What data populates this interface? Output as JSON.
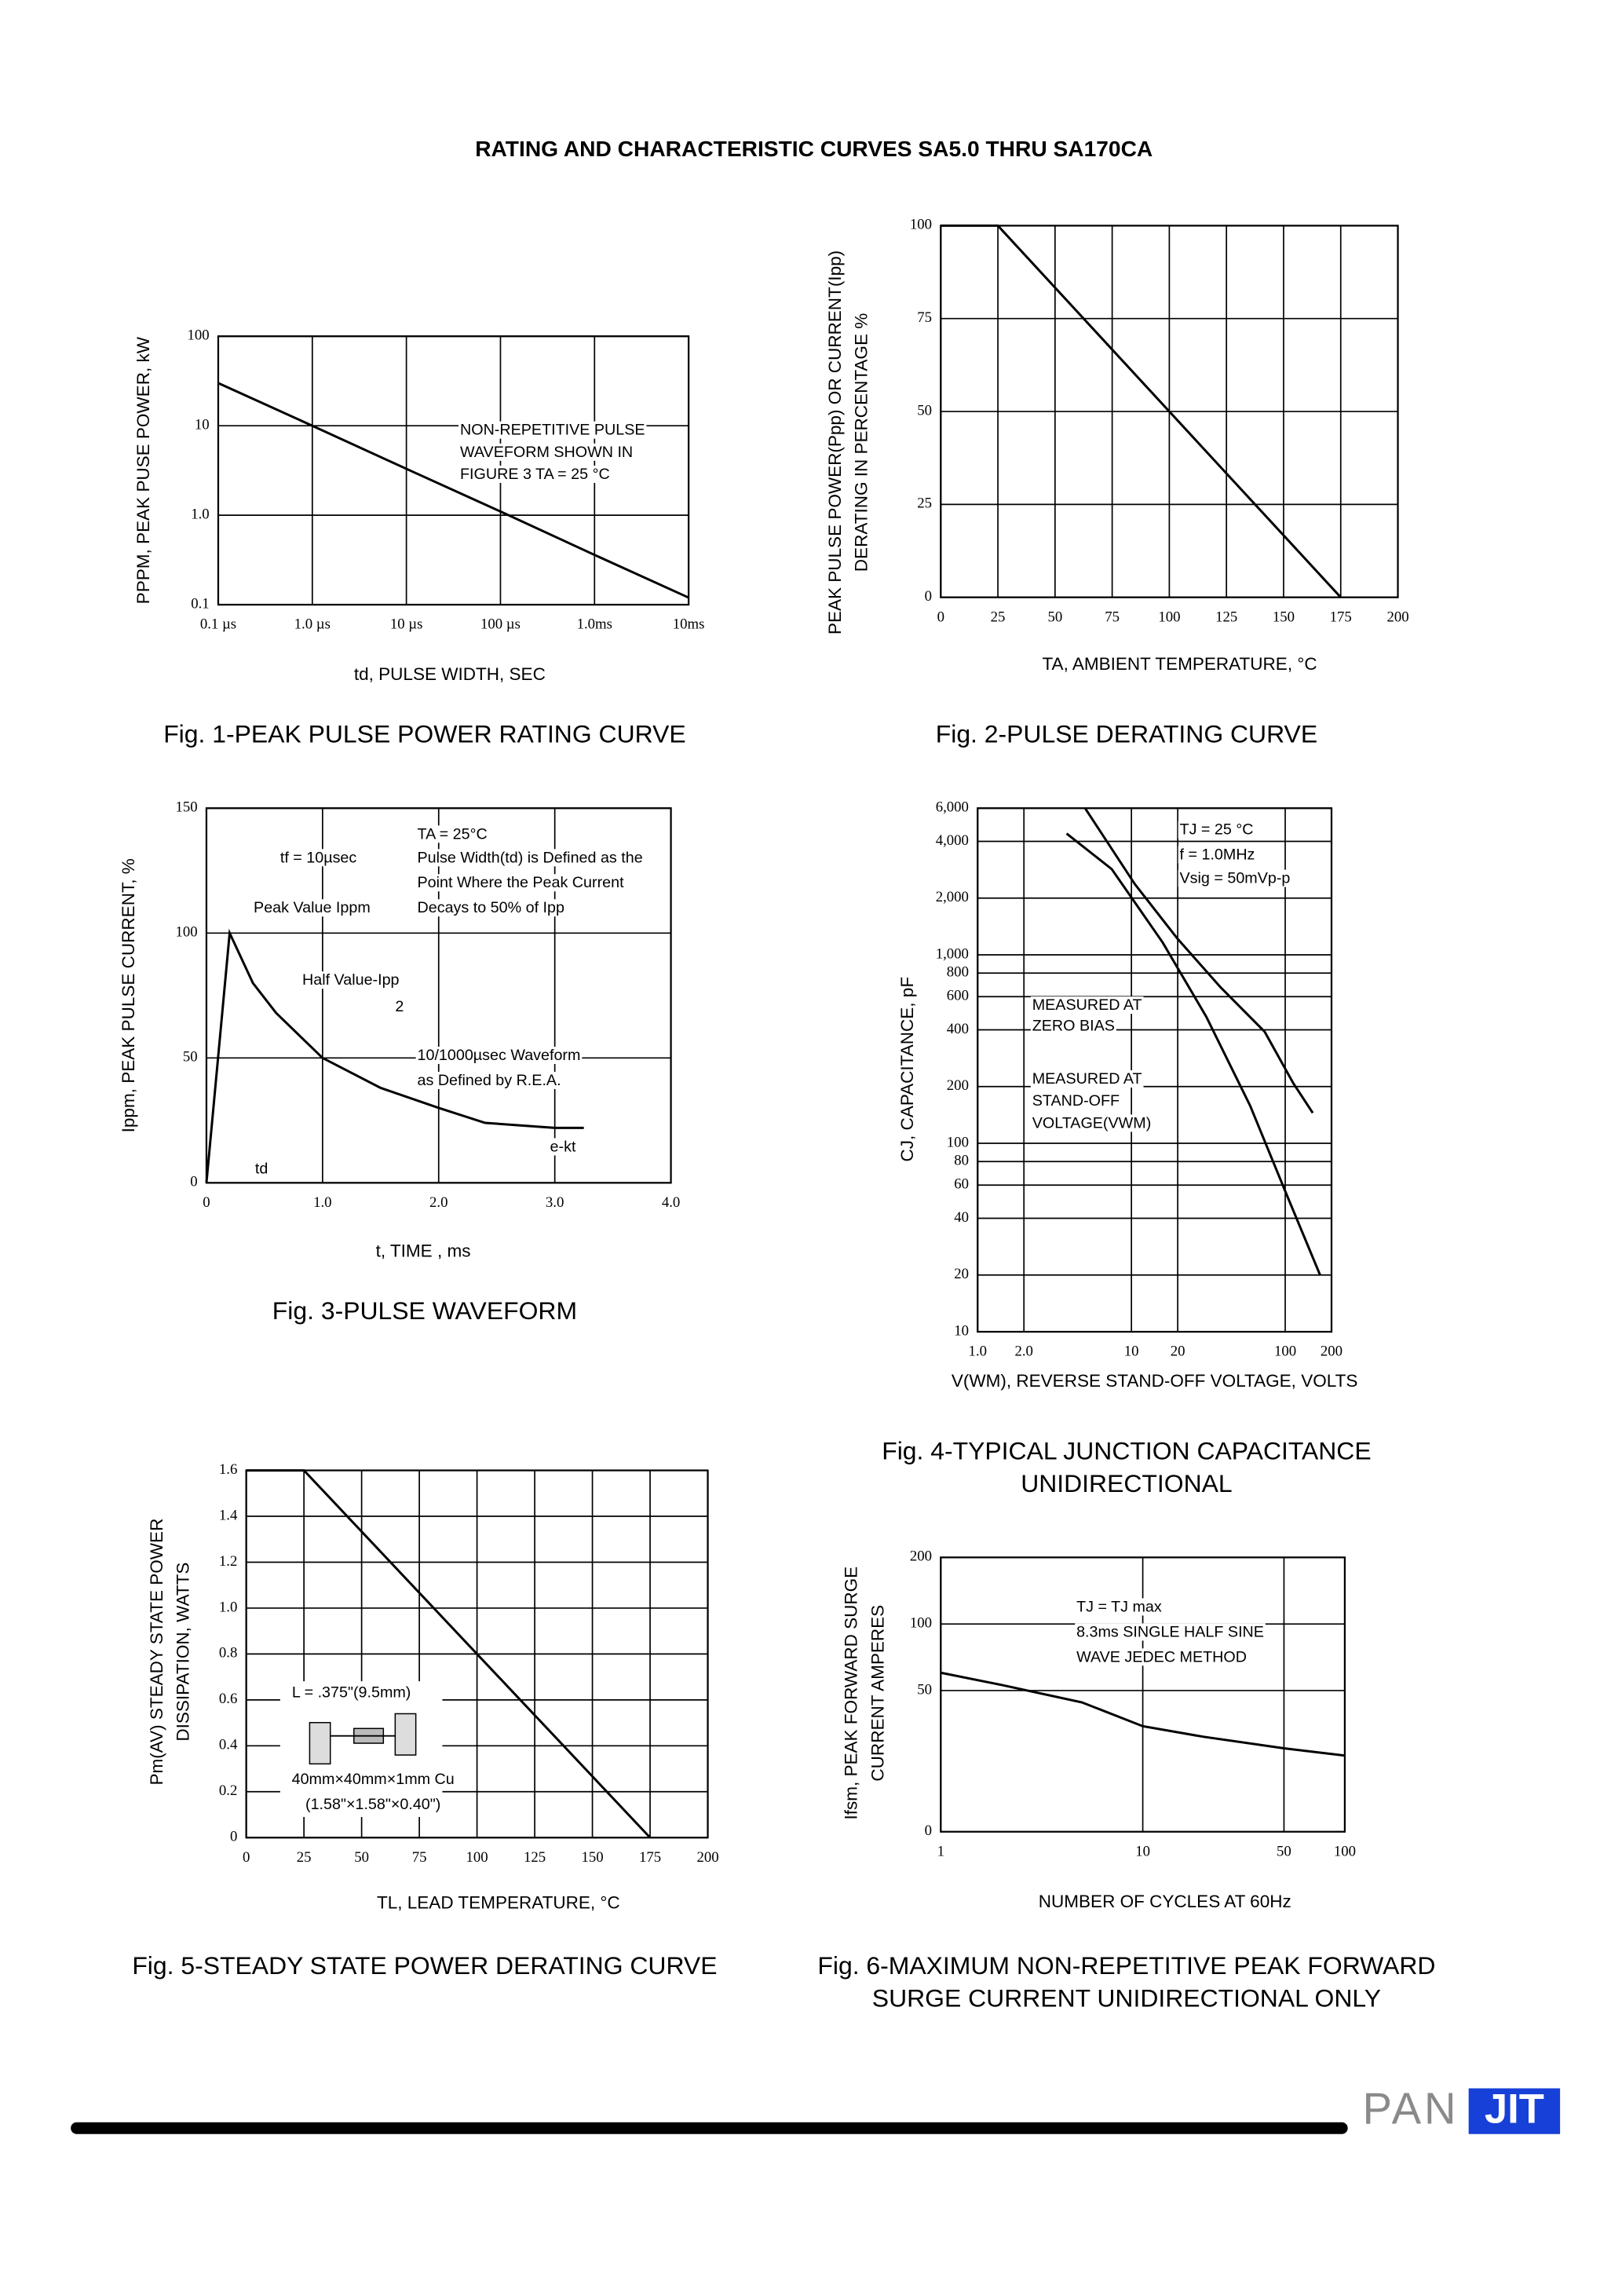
{
  "title": "RATING AND CHARACTERISTIC CURVES SA5.0 THRU SA170CA",
  "logo": {
    "left": "PAN",
    "right": "JIT"
  },
  "chart_data": [
    {
      "type": "line",
      "caption": [
        "Fig. 1-PEAK PULSE POWER RATING CURVE"
      ],
      "xlabel": "td, PULSE WIDTH, SEC",
      "ylabel": [
        "PPPM, PEAK PUSE POWER, kW"
      ],
      "xlog": true,
      "ylog": true,
      "grid": true,
      "xlim": [
        1e-07,
        0.01
      ],
      "ylim": [
        0.1,
        100
      ],
      "xticks": [
        {
          "value": 1e-07,
          "label": "0.1 µs"
        },
        {
          "value": 1e-06,
          "label": "1.0 µs"
        },
        {
          "value": 1e-05,
          "label": "10 µs"
        },
        {
          "value": 0.0001,
          "label": "100 µs"
        },
        {
          "value": 0.001,
          "label": "1.0ms"
        },
        {
          "value": 0.01,
          "label": "10ms"
        }
      ],
      "yticks": [
        0.1,
        {
          "value": 1,
          "label": "1.0"
        },
        10,
        100
      ],
      "x": [
        1e-07,
        1e-06,
        1e-05,
        0.0001,
        0.001,
        0.01
      ],
      "series": [
        {
          "color": "#000000",
          "values": [
            30,
            10,
            3.3,
            1.1,
            0.36,
            0.12
          ]
        }
      ],
      "annotations": [
        "NON-REPETITIVE PULSE",
        "WAVEFORM SHOWN IN",
        "FIGURE 3 TA = 25 °C"
      ]
    },
    {
      "type": "line",
      "caption": [
        "Fig. 2-PULSE DERATING CURVE"
      ],
      "xlabel": "TA, AMBIENT TEMPERATURE, °C",
      "ylabel": [
        "PEAK PULSE POWER(Ppp) OR CURRENT(Ipp)",
        "DERATING IN PERCENTAGE %"
      ],
      "xlog": false,
      "ylog": false,
      "grid": true,
      "xlim": [
        0,
        200
      ],
      "ylim": [
        0,
        100
      ],
      "xticks": [
        0,
        25,
        50,
        75,
        100,
        125,
        150,
        175,
        200
      ],
      "yticks": [
        0,
        25,
        50,
        75,
        100
      ],
      "x": [
        0,
        25,
        175
      ],
      "series": [
        {
          "color": "#000000",
          "values": [
            100,
            100,
            0
          ]
        }
      ],
      "annotations": []
    },
    {
      "type": "line",
      "caption": [
        "Fig. 3-PULSE WAVEFORM"
      ],
      "xlabel": "t, TIME , ms",
      "ylabel": [
        "Ippm, PEAK PULSE CURRENT, %"
      ],
      "xlog": false,
      "ylog": false,
      "grid": true,
      "xlim": [
        0,
        4
      ],
      "ylim": [
        0,
        150
      ],
      "xticks": [
        0,
        {
          "value": 1,
          "label": "1.0"
        },
        {
          "value": 2,
          "label": "2.0"
        },
        {
          "value": 3,
          "label": "3.0"
        },
        {
          "value": 4,
          "label": "4.0"
        }
      ],
      "yticks": [
        0,
        50,
        100,
        150
      ],
      "x": [
        0,
        0.2,
        0.4,
        0.6,
        1,
        1.5,
        2,
        2.4,
        3,
        3.25
      ],
      "series": [
        {
          "color": "#000000",
          "values": [
            0,
            100,
            80,
            68,
            50,
            38,
            30,
            24,
            22,
            22
          ]
        }
      ],
      "annotations": [
        "TA = 25°C",
        "tf = 10µsec",
        "Pulse Width(td) is Defined as the",
        "Point Where the Peak Current",
        "Decays to 50% of Ipp",
        "Peak Value Ippm",
        "Half Value-Ipp",
        "2",
        "10/1000µsec Waveform",
        "as Defined by R.E.A.",
        "e-kt",
        "td"
      ]
    },
    {
      "type": "line",
      "caption": [
        "Fig. 4-TYPICAL JUNCTION CAPACITANCE",
        "UNIDIRECTIONAL"
      ],
      "xlabel": "V(WM), REVERSE STAND-OFF VOLTAGE, VOLTS",
      "ylabel": [
        "CJ, CAPACITANCE, pF"
      ],
      "xlog": true,
      "ylog": true,
      "grid": true,
      "xlim": [
        1,
        200
      ],
      "ylim": [
        10,
        6000
      ],
      "xticks": [
        {
          "value": 1,
          "label": "1.0"
        },
        {
          "value": 2,
          "label": "2.0"
        },
        10,
        20,
        100,
        200
      ],
      "yticks": [
        10,
        20,
        40,
        60,
        80,
        100,
        200,
        400,
        600,
        800,
        {
          "value": 1000,
          "label": "1,000"
        },
        {
          "value": 2000,
          "label": "2,000"
        },
        {
          "value": 4000,
          "label": "4,000"
        },
        {
          "value": 6000,
          "label": "6,000"
        }
      ],
      "series": [
        {
          "color": "#000000",
          "x": [
            5,
            10.5,
            19.9,
            38.1,
            73.5,
            113,
            151
          ],
          "values": [
            6000,
            2380,
            1220,
            671,
            391,
            208,
            145
          ]
        },
        {
          "color": "#000000",
          "x": [
            3.79,
            7.45,
            16,
            30.7,
            59.2,
            102,
            169
          ],
          "values": [
            4400,
            2850,
            1160,
            469,
            158,
            53.6,
            19.9
          ]
        }
      ],
      "annotations": [
        "TJ = 25 °C",
        "f = 1.0MHz",
        "Vsig = 50mVp-p",
        "MEASURED AT",
        "ZERO BIAS",
        "MEASURED AT",
        "STAND-OFF",
        "VOLTAGE(VWM)"
      ]
    },
    {
      "type": "line",
      "caption": [
        "Fig. 5-STEADY STATE POWER DERATING CURVE"
      ],
      "xlabel": "TL, LEAD TEMPERATURE, °C",
      "ylabel": [
        "Pm(AV) STEADY STATE POWER",
        "DISSIPATION, WATTS"
      ],
      "xlog": false,
      "ylog": false,
      "grid": true,
      "xlim": [
        0,
        200
      ],
      "ylim": [
        0,
        1.6
      ],
      "xticks": [
        0,
        25,
        50,
        75,
        100,
        125,
        150,
        175,
        200
      ],
      "yticks": [
        0,
        0.2,
        0.4,
        0.6,
        0.8,
        {
          "value": 1,
          "label": "1.0"
        },
        1.2,
        1.4,
        1.6
      ],
      "x": [
        0,
        25,
        175
      ],
      "series": [
        {
          "color": "#000000",
          "values": [
            1.6,
            1.6,
            0
          ]
        }
      ],
      "annotations": [
        "L = .375\"(9.5mm)",
        "40mm×40mm×1mm Cu",
        "(1.58\"×1.58\"×0.40\")"
      ]
    },
    {
      "type": "line",
      "caption": [
        "Fig. 6-MAXIMUM NON-REPETITIVE PEAK FORWARD",
        "SURGE CURRENT UNIDIRECTIONAL ONLY"
      ],
      "xlabel": "NUMBER OF CYCLES AT 60Hz",
      "ylabel": [
        "Ifsm, PEAK FORWARD SURGE",
        "CURRENT AMPERES"
      ],
      "xlog": true,
      "ylog": true,
      "grid": true,
      "xlim": [
        1,
        100
      ],
      "ylim": [
        11.5,
        200
      ],
      "xticks": [
        1,
        10,
        50,
        100
      ],
      "yticks": [
        50,
        100,
        200
      ],
      "ymin_label": "0",
      "x": [
        1,
        2,
        5,
        10,
        20,
        50,
        100
      ],
      "series": [
        {
          "color": "#000000",
          "values": [
            60.2,
            53,
            44.2,
            34.5,
            30.9,
            27.4,
            25.4
          ]
        }
      ],
      "annotations": [
        "TJ = TJ max",
        "8.3ms SINGLE HALF SINE",
        "WAVE JEDEC METHOD"
      ]
    }
  ]
}
